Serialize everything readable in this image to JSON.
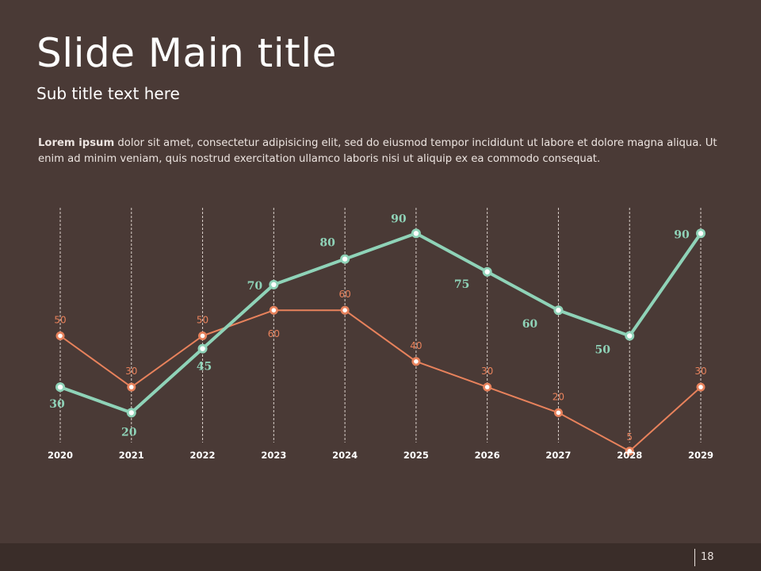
{
  "slide": {
    "title": "Slide Main title",
    "subtitle": "Sub title text here",
    "body_lead": "Lorem ipsum",
    "body_text": " dolor sit amet, consectetur adipisicing elit, sed do eiusmod tempor incididunt ut labore et dolore magna aliqua. Ut enim ad minim veniam, quis nostrud exercitation ullamco laboris nisi ut aliquip ex ea commodo consequat.",
    "page_number": "18",
    "background_color": "#4a3a36",
    "footer_color": "#3a2d29"
  },
  "chart_data": {
    "type": "line",
    "title": "",
    "xlabel": "",
    "ylabel": "",
    "categories": [
      "2020",
      "2021",
      "2022",
      "2023",
      "2024",
      "2025",
      "2026",
      "2027",
      "2028",
      "2029"
    ],
    "ylim": [
      0,
      100
    ],
    "grid": "vertical-dashed",
    "series": [
      {
        "values": [
          30,
          20,
          45,
          70,
          80,
          90,
          75,
          60,
          50,
          90
        ],
        "color": "#8fd3b8",
        "label_color": "#8fd3b8"
      },
      {
        "values": [
          50,
          30,
          50,
          60,
          60,
          40,
          30,
          20,
          5,
          30
        ],
        "color": "#e8825c",
        "label_color": "#e8825c"
      }
    ]
  }
}
